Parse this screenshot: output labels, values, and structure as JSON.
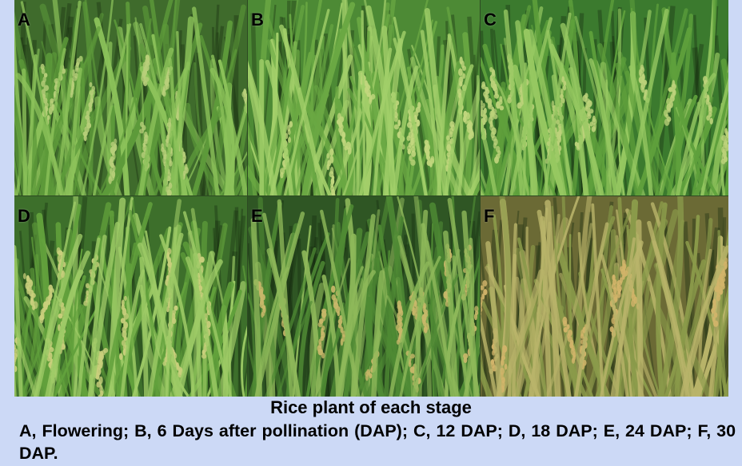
{
  "figure": {
    "panels": [
      {
        "letter": "A",
        "stage": "flowering",
        "palette": {
          "bg": "#3f6b2c",
          "leaf": "#5d9a3a",
          "leaf_light": "#8cc25a",
          "panicle": "#b8cf7a"
        }
      },
      {
        "letter": "B",
        "stage": "6-dap",
        "palette": {
          "bg": "#4d8a35",
          "leaf": "#6aa843",
          "leaf_light": "#a3cf6a",
          "panicle": "#c2d77e"
        }
      },
      {
        "letter": "C",
        "stage": "12-dap",
        "palette": {
          "bg": "#3b7a2e",
          "leaf": "#5fa03c",
          "leaf_light": "#96c861",
          "panicle": "#bcd27a"
        }
      },
      {
        "letter": "D",
        "stage": "18-dap",
        "palette": {
          "bg": "#3d6f2b",
          "leaf": "#62a13c",
          "leaf_light": "#9ecb66",
          "panicle": "#c9cf7c"
        }
      },
      {
        "letter": "E",
        "stage": "24-dap",
        "palette": {
          "bg": "#2f5624",
          "leaf": "#4f8a34",
          "leaf_light": "#8fb95a",
          "panicle": "#c9b86a"
        }
      },
      {
        "letter": "F",
        "stage": "30-dap",
        "palette": {
          "bg": "#6b6a35",
          "leaf": "#8a9a4a",
          "leaf_light": "#b9b46a",
          "panicle": "#d2b46a"
        }
      }
    ]
  },
  "caption": {
    "title": "Rice plant of each stage",
    "text": "A, Flowering;  B, 6 Days after pollination (DAP);  C, 12 DAP;  D, 18 DAP;   E, 24 DAP;  F, 30 DAP."
  }
}
